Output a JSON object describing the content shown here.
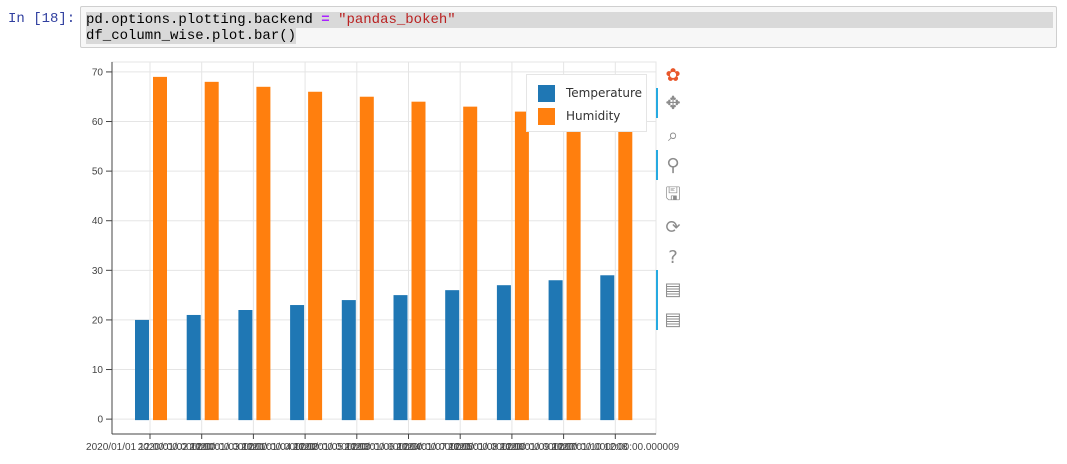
{
  "notebook": {
    "prompt": "In [18]:",
    "code_line1": {
      "part1": "pd.options.plotting.backend ",
      "op": "=",
      "part2": " ",
      "str": "\"pandas_bokeh\""
    },
    "code_line2": "df_column_wise.plot.bar()"
  },
  "toolbar": {
    "tools": [
      {
        "name": "bokeh-logo-icon",
        "glyph": "✿"
      },
      {
        "name": "pan-tool-icon",
        "glyph": "✥"
      },
      {
        "name": "box-zoom-tool-icon",
        "glyph": "⌕"
      },
      {
        "name": "wheel-zoom-tool-icon",
        "glyph": "⚲"
      },
      {
        "name": "save-tool-icon",
        "glyph": "🖫"
      },
      {
        "name": "reset-tool-icon",
        "glyph": "⟳"
      },
      {
        "name": "help-tool-icon",
        "glyph": "?"
      },
      {
        "name": "hover-tool-icon-1",
        "glyph": "▤"
      },
      {
        "name": "hover-tool-icon-2",
        "glyph": "▤"
      }
    ],
    "accent": "#26aae1"
  },
  "chart_data": {
    "type": "bar",
    "categories": [
      "2020/01/01 12:00:00.000000",
      "2020/01/02 12:00:00.000001",
      "2020/01/03 12:00:00.000002",
      "2020/01/04 12:00:00.000003",
      "2020/01/05 12:00:00.000004",
      "2020/01/06 12:00:00.000005",
      "2020/01/07 12:00:00.000006",
      "2020/01/08 12:00:00.000007",
      "2020/01/09 12:00:00.000008",
      "2020/01/10 12:00:00.000009"
    ],
    "series": [
      {
        "name": "Temperature",
        "color": "#1f77b4",
        "values": [
          20,
          21,
          22,
          23,
          24,
          25,
          26,
          27,
          28,
          29
        ]
      },
      {
        "name": "Humidity",
        "color": "#ff7f0e",
        "values": [
          69,
          68,
          67,
          66,
          65,
          64,
          63,
          62,
          61,
          60
        ]
      }
    ],
    "yticks": [
      0,
      10,
      20,
      30,
      40,
      50,
      60,
      70
    ],
    "ylim": [
      -3,
      72
    ],
    "grid": true,
    "legend_position": "top-right"
  }
}
